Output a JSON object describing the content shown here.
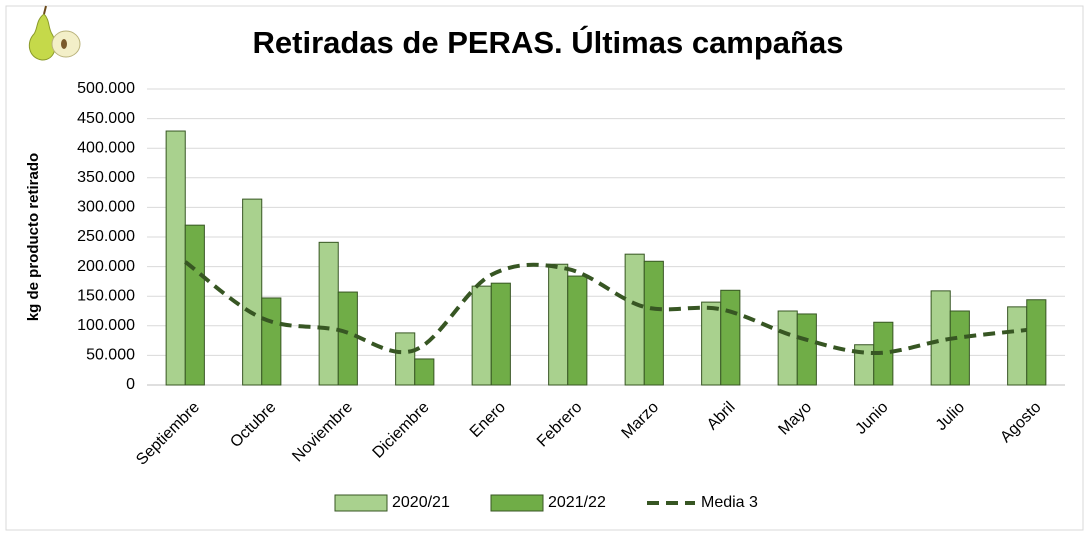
{
  "chart_data": {
    "type": "bar",
    "title": "Retiradas de PERAS. Últimas campañas",
    "y_label": "kg de producto retirado",
    "categories": [
      "Septiembre",
      "Octubre",
      "Noviembre",
      "Diciembre",
      "Enero",
      "Febrero",
      "Marzo",
      "Abril",
      "Mayo",
      "Junio",
      "Julio",
      "Agosto"
    ],
    "series": [
      {
        "name": "2020/21",
        "type": "bar",
        "color": "#a9d18e",
        "values": [
          429000,
          314000,
          241000,
          88000,
          167000,
          204000,
          221000,
          140000,
          125000,
          68000,
          159000,
          132000
        ]
      },
      {
        "name": "2021/22",
        "type": "bar",
        "color": "#70ad47",
        "values": [
          270000,
          147000,
          157000,
          44000,
          172000,
          184000,
          209000,
          160000,
          120000,
          106000,
          125000,
          144000
        ]
      },
      {
        "name": "Media 3",
        "type": "line",
        "color": "#375623",
        "dashed": true,
        "values": [
          208000,
          113000,
          93000,
          59000,
          186000,
          196000,
          132000,
          128000,
          81000,
          54000,
          78000,
          93000
        ]
      }
    ],
    "ylim": [
      0,
      500000
    ],
    "yticks": [
      0,
      {
        "value": 50000,
        "label": "50.000"
      },
      {
        "value": 100000,
        "label": "100.000"
      },
      {
        "value": 150000,
        "label": "150.000"
      },
      {
        "value": 200000,
        "label": "200.000"
      },
      {
        "value": 250000,
        "label": "250.000"
      },
      {
        "value": 300000,
        "label": "300.000"
      },
      {
        "value": 350000,
        "label": "350.000"
      },
      {
        "value": 400000,
        "label": "400.000"
      },
      {
        "value": 450000,
        "label": "450.000"
      },
      {
        "value": 500000,
        "label": "500.000"
      }
    ],
    "grid": true,
    "legend": "bottom"
  }
}
